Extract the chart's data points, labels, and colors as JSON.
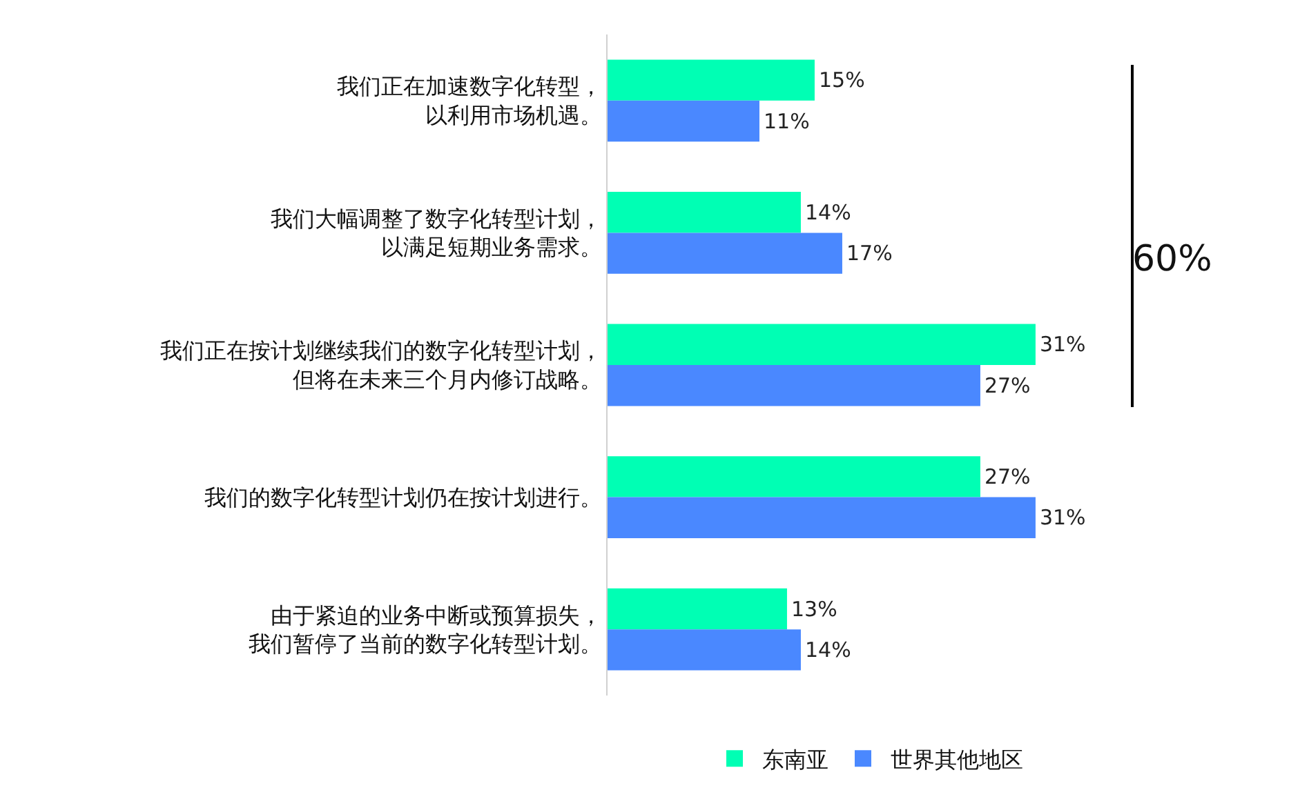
{
  "chart_data": {
    "type": "bar",
    "orientation": "horizontal",
    "categories": [
      "我们正在加速数字化转型，以利用市场机遇。",
      "我们大幅调整了数字化转型计划，以满足短期业务需求。",
      "我们正在按计划继续我们的数字化转型计划，但将在未来三个月内修订战略。",
      "我们的数字化转型计划仍在按计划进行。",
      "由于紧迫的业务中断或预算损失，我们暂停了当前的数字化转型计划。"
    ],
    "series": [
      {
        "name": "东南亚",
        "color": "#00ffb4",
        "values": [
          15,
          14,
          31,
          27,
          13
        ],
        "value_labels": [
          "15%",
          "14%",
          "31%",
          "27%",
          "13%"
        ]
      },
      {
        "name": "世界其他地区",
        "color": "#4a88ff",
        "values": [
          11,
          17,
          27,
          31,
          14
        ],
        "value_labels": [
          "11%",
          "17%",
          "27%",
          "31%",
          "14%"
        ]
      }
    ],
    "tick_labels": "y",
    "grid": false,
    "legend": "bottom",
    "annotations": [
      "60%"
    ]
  }
}
